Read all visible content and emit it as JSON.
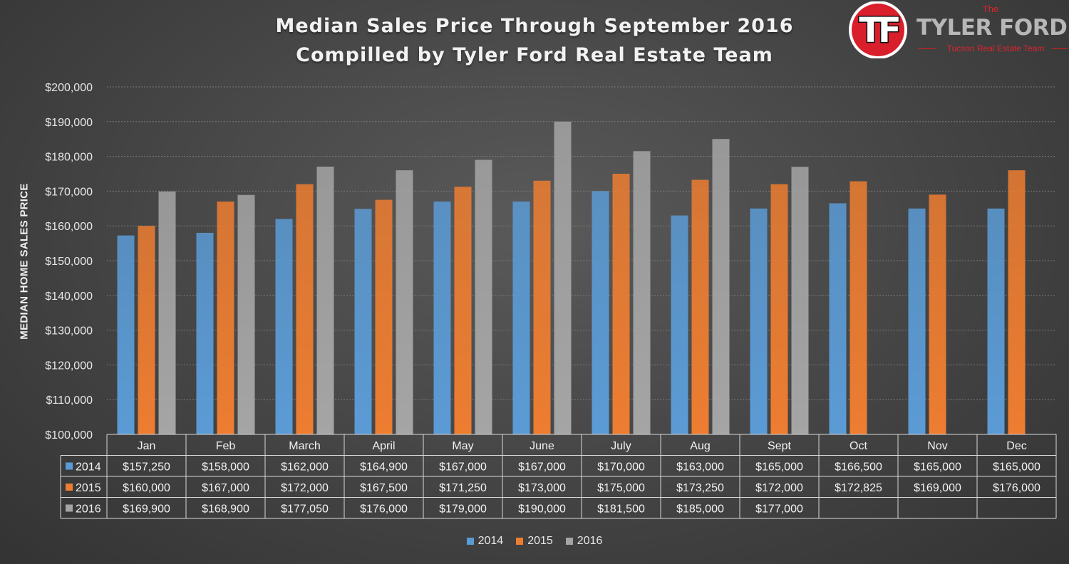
{
  "title_line1": "Median Sales Price Through September 2016",
  "title_line2": "Compilled by Tyler Ford Real Estate Team",
  "logo": {
    "badge_text": "TF",
    "the_text": "The",
    "name_text": "TYLER FORD",
    "sub_text": "Tucson Real Estate Team",
    "red": "#e0242f"
  },
  "chart_data": {
    "type": "bar",
    "title": "Median Sales Price Through September 2016",
    "subtitle": "Compilled by Tyler Ford Real Estate Team",
    "ylabel": "MEDIAN HOME SALES PRICE",
    "xlabel": "",
    "ylim": [
      100000,
      200000
    ],
    "yticks": [
      100000,
      110000,
      120000,
      130000,
      140000,
      150000,
      160000,
      170000,
      180000,
      190000,
      200000
    ],
    "ytick_labels": [
      "$100,000",
      "$110,000",
      "$120,000",
      "$130,000",
      "$140,000",
      "$150,000",
      "$160,000",
      "$170,000",
      "$180,000",
      "$190,000",
      "$200,000"
    ],
    "grid": true,
    "legend": "bottom",
    "data_table": true,
    "categories": [
      "Jan",
      "Feb",
      "March",
      "April",
      "May",
      "June",
      "July",
      "Aug",
      "Sept",
      "Oct",
      "Nov",
      "Dec"
    ],
    "series": [
      {
        "name": "2014",
        "color": "#5b9bd5",
        "values": [
          157250,
          158000,
          162000,
          164900,
          167000,
          167000,
          170000,
          163000,
          165000,
          166500,
          165000,
          165000
        ],
        "labels": [
          "$157,250",
          "$158,000",
          "$162,000",
          "$164,900",
          "$167,000",
          "$167,000",
          "$170,000",
          "$163,000",
          "$165,000",
          "$166,500",
          "$165,000",
          "$165,000"
        ]
      },
      {
        "name": "2015",
        "color": "#ed7d31",
        "values": [
          160000,
          167000,
          172000,
          167500,
          171250,
          173000,
          175000,
          173250,
          172000,
          172825,
          169000,
          176000
        ],
        "labels": [
          "$160,000",
          "$167,000",
          "$172,000",
          "$167,500",
          "$171,250",
          "$173,000",
          "$175,000",
          "$173,250",
          "$172,000",
          "$172,825",
          "$169,000",
          "$176,000"
        ]
      },
      {
        "name": "2016",
        "color": "#a5a5a5",
        "values": [
          169900,
          168900,
          177050,
          176000,
          179000,
          190000,
          181500,
          185000,
          177000,
          null,
          null,
          null
        ],
        "labels": [
          "$169,900",
          "$168,900",
          "$177,050",
          "$176,000",
          "$179,000",
          "$190,000",
          "$181,500",
          "$185,000",
          "$177,000",
          "",
          "",
          ""
        ]
      }
    ]
  }
}
